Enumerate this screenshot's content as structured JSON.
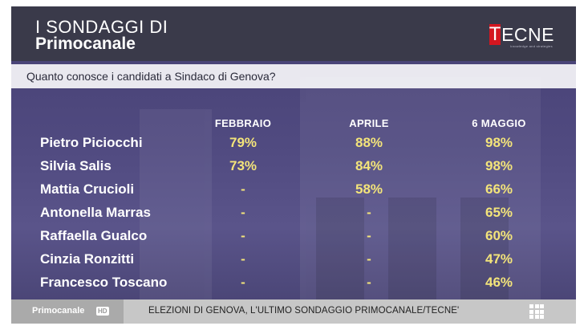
{
  "header": {
    "title_line1": "I SONDAGGI DI",
    "title_line2": "Primocanale",
    "logo_letter": "T",
    "logo_text": "ECNE",
    "logo_tagline": "knowledge and strategies"
  },
  "question": "Quanto conosce i candidati a Sindaco di Genova?",
  "chart_data": {
    "type": "table",
    "title": "Quanto conosce i candidati a Sindaco di Genova?",
    "columns": [
      "FEBBRAIO",
      "APRILE",
      "6 MAGGIO"
    ],
    "rows": [
      {
        "name": "Pietro Piciocchi",
        "values": [
          "79%",
          "88%",
          "98%"
        ]
      },
      {
        "name": "Silvia Salis",
        "values": [
          "73%",
          "84%",
          "98%"
        ]
      },
      {
        "name": "Mattia Crucioli",
        "values": [
          "-",
          "58%",
          "66%"
        ]
      },
      {
        "name": "Antonella Marras",
        "values": [
          "-",
          "-",
          "65%"
        ]
      },
      {
        "name": "Raffaella Gualco",
        "values": [
          "-",
          "-",
          "60%"
        ]
      },
      {
        "name": "Cinzia Ronzitti",
        "values": [
          "-",
          "-",
          "47%"
        ]
      },
      {
        "name": "Francesco Toscano",
        "values": [
          "-",
          "-",
          "46%"
        ]
      }
    ]
  },
  "footer": {
    "brand": "Primocanale",
    "brand_badge": "HD",
    "ticker": "ELEZIONI DI GENOVA, L'ULTIMO SONDAGGIO PRIMOCANALE/TECNE'",
    "menu_icon": "grid-icon"
  },
  "colors": {
    "header_bg": "#3a3a4a",
    "panel_bg": "#504a80",
    "value_text": "#f3e47a",
    "logo_red": "#d4161f",
    "footer_bg": "#c7c7c7"
  }
}
